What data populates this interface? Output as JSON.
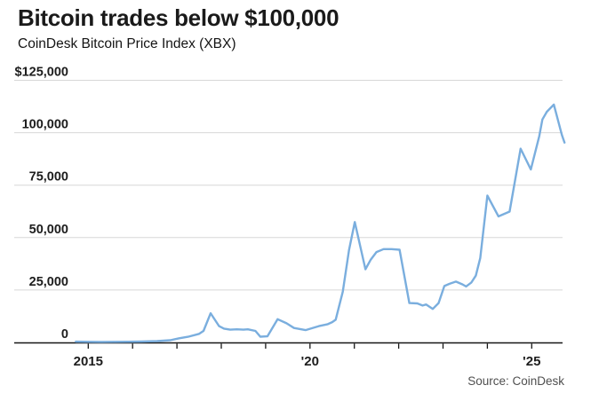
{
  "header": {
    "title": "Bitcoin trades below $100,000",
    "subtitle": "CoinDesk Bitcoin Price Index (XBX)"
  },
  "source": "Source: CoinDesk",
  "colors": {
    "line": "#7aaede",
    "grid": "#d7d7d7",
    "axis": "#161616",
    "tick_text": "#1d1d1d",
    "source_text": "#4f4f4f"
  },
  "chart_data": {
    "type": "line",
    "title": "Bitcoin trades below $100,000",
    "subtitle": "CoinDesk Bitcoin Price Index (XBX)",
    "legend": false,
    "grid": true,
    "ylabel": "",
    "xlabel": "",
    "y_axis": {
      "range": [
        0,
        125000
      ],
      "ticks": [
        0,
        25000,
        50000,
        75000,
        100000,
        125000
      ],
      "tick_labels": [
        "0",
        "25,000",
        "50,000",
        "75,000",
        "100,000",
        "$125,000"
      ]
    },
    "x_axis": {
      "range_years": [
        2014.68,
        2025.82
      ],
      "ticks": [
        2015,
        2016,
        2017,
        2018,
        2019,
        2020,
        2021,
        2022,
        2023,
        2024,
        2025
      ],
      "tick_labels": [
        "2015",
        "",
        "",
        "",
        "",
        "'20",
        "",
        "",
        "",
        "",
        "'25"
      ]
    },
    "series": [
      {
        "name": "CoinDesk Bitcoin Price Index (XBX)",
        "unit": "USD",
        "points": [
          [
            2014.72,
            400
          ],
          [
            2015.05,
            300
          ],
          [
            2015.3,
            250
          ],
          [
            2015.6,
            280
          ],
          [
            2015.9,
            350
          ],
          [
            2016.2,
            430
          ],
          [
            2016.55,
            620
          ],
          [
            2016.85,
            1050
          ],
          [
            2017.05,
            2000
          ],
          [
            2017.25,
            2700
          ],
          [
            2017.5,
            4100
          ],
          [
            2017.6,
            5500
          ],
          [
            2017.76,
            13900
          ],
          [
            2017.95,
            7800
          ],
          [
            2018.06,
            6600
          ],
          [
            2018.2,
            6100
          ],
          [
            2018.35,
            6250
          ],
          [
            2018.5,
            6100
          ],
          [
            2018.6,
            6250
          ],
          [
            2018.77,
            5500
          ],
          [
            2018.88,
            2750
          ],
          [
            2019.04,
            2900
          ],
          [
            2019.27,
            11100
          ],
          [
            2019.47,
            9150
          ],
          [
            2019.64,
            6900
          ],
          [
            2019.9,
            5900
          ],
          [
            2020.2,
            7800
          ],
          [
            2020.4,
            8700
          ],
          [
            2020.5,
            9700
          ],
          [
            2020.58,
            10850
          ],
          [
            2020.74,
            24200
          ],
          [
            2020.88,
            44000
          ],
          [
            2021.01,
            57400
          ],
          [
            2021.25,
            34900
          ],
          [
            2021.37,
            39500
          ],
          [
            2021.5,
            43100
          ],
          [
            2021.66,
            44500
          ],
          [
            2021.84,
            44500
          ],
          [
            2022.02,
            44200
          ],
          [
            2022.24,
            18800
          ],
          [
            2022.42,
            18600
          ],
          [
            2022.54,
            17600
          ],
          [
            2022.62,
            18100
          ],
          [
            2022.77,
            16000
          ],
          [
            2022.9,
            18800
          ],
          [
            2023.03,
            26900
          ],
          [
            2023.14,
            27900
          ],
          [
            2023.29,
            29000
          ],
          [
            2023.44,
            27650
          ],
          [
            2023.52,
            26700
          ],
          [
            2023.64,
            28600
          ],
          [
            2023.74,
            31850
          ],
          [
            2023.84,
            40250
          ],
          [
            2024.0,
            70000
          ],
          [
            2024.25,
            60100
          ],
          [
            2024.5,
            62400
          ],
          [
            2024.75,
            92400
          ],
          [
            2024.98,
            82500
          ],
          [
            2025.17,
            98400
          ],
          [
            2025.24,
            106300
          ],
          [
            2025.34,
            110000
          ],
          [
            2025.5,
            113400
          ],
          [
            2025.68,
            99000
          ],
          [
            2025.74,
            95300
          ]
        ]
      }
    ]
  }
}
